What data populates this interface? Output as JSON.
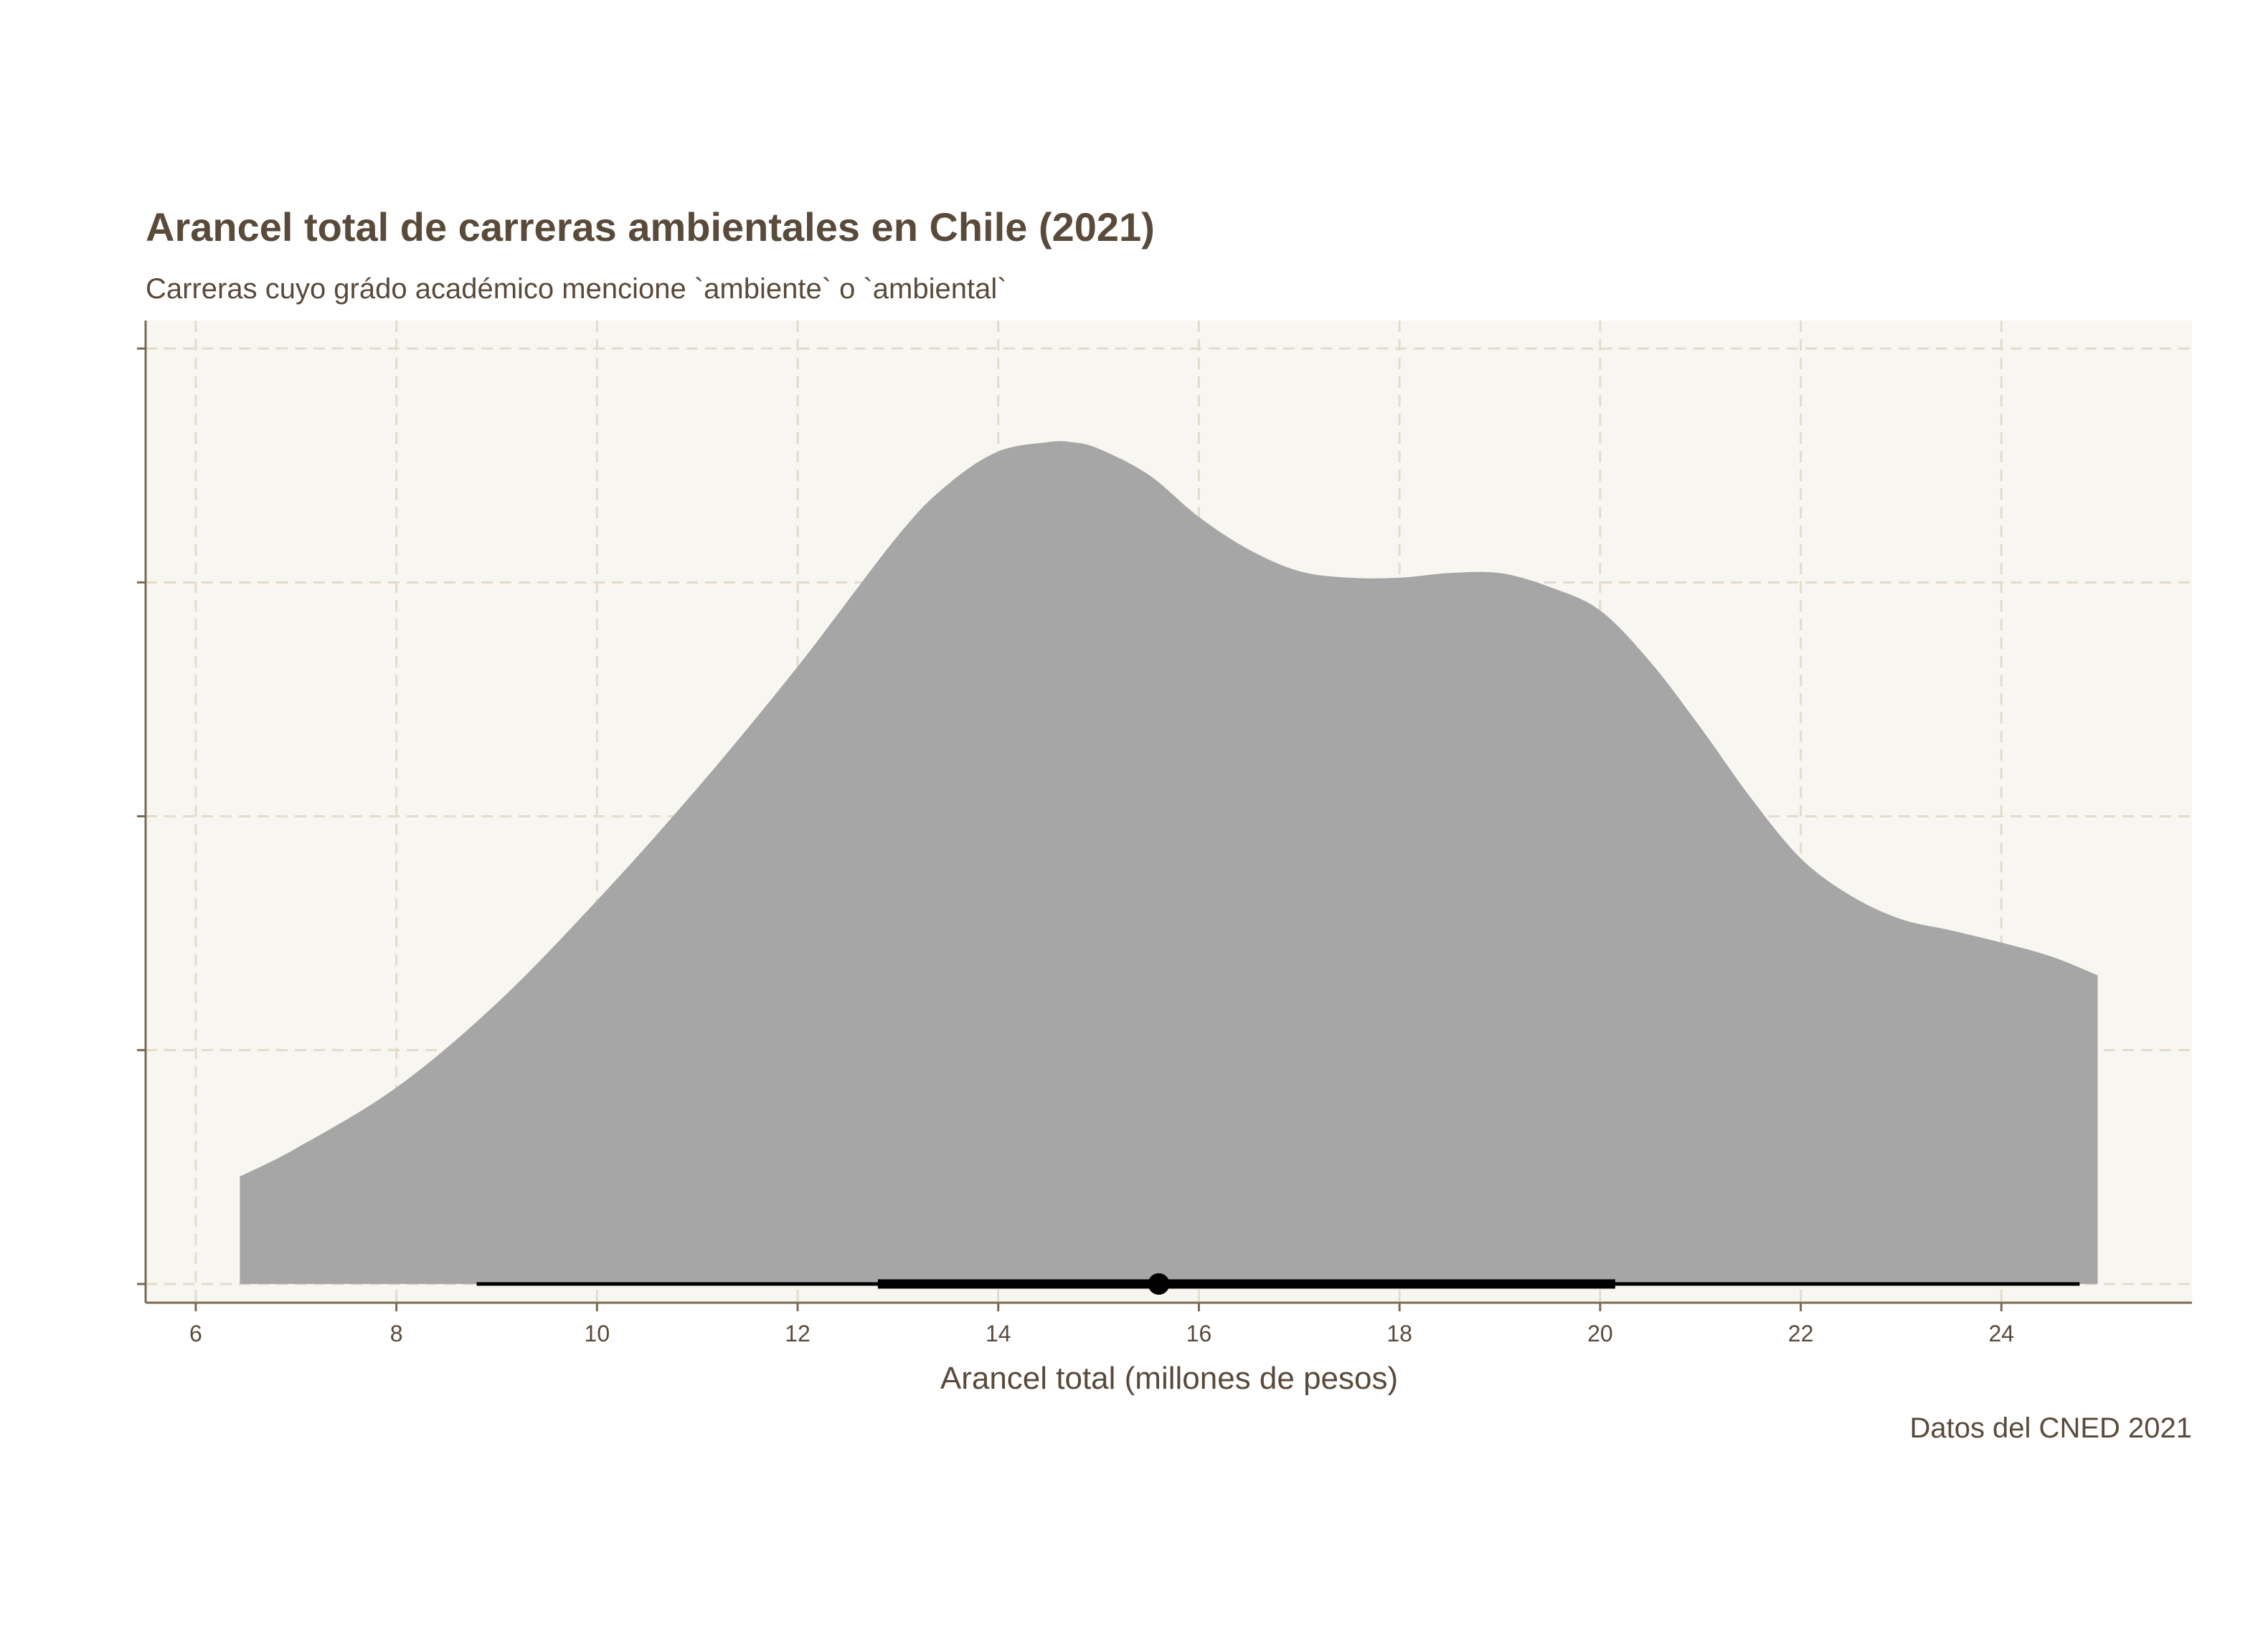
{
  "chart_data": {
    "type": "area",
    "title": "Arancel total de carreras ambientales en Chile (2021)",
    "subtitle": "Carreras cuyo grádo académico mencione `ambiente` o `ambiental`",
    "xlabel": "Arancel total (millones de pesos)",
    "ylabel": "",
    "caption": "Datos del CNED 2021",
    "xlim": [
      5.5,
      25.9
    ],
    "ylim": [
      -0.02,
      1.03
    ],
    "x_ticks": [
      "6",
      "8",
      "10",
      "12",
      "14",
      "16",
      "18",
      "20",
      "22",
      "24"
    ],
    "x_tick_values": [
      6,
      8,
      10,
      12,
      14,
      16,
      18,
      20,
      22,
      24
    ],
    "y_tick_values": [
      0,
      0.25,
      0.5,
      0.75,
      1.0
    ],
    "grid": true,
    "density": {
      "x": [
        6.44,
        7.0,
        8.0,
        9.0,
        10.0,
        11.0,
        12.0,
        13.0,
        13.5,
        14.0,
        14.5,
        14.73,
        15.0,
        15.5,
        16.0,
        16.5,
        17.0,
        17.5,
        18.0,
        18.5,
        19.0,
        19.5,
        20.0,
        20.5,
        21.0,
        21.5,
        22.0,
        22.5,
        23.0,
        23.5,
        24.0,
        24.5,
        24.96
      ],
      "y": [
        0.115,
        0.145,
        0.21,
        0.3,
        0.41,
        0.53,
        0.66,
        0.8,
        0.855,
        0.89,
        0.9,
        0.9,
        0.893,
        0.865,
        0.82,
        0.785,
        0.762,
        0.755,
        0.755,
        0.76,
        0.76,
        0.745,
        0.72,
        0.665,
        0.595,
        0.52,
        0.455,
        0.415,
        0.39,
        0.378,
        0.365,
        0.35,
        0.33
      ]
    },
    "interval": {
      "point": 15.6,
      "inner": [
        12.8,
        20.15
      ],
      "outer": [
        8.8,
        24.78
      ]
    },
    "colors": {
      "fill": "#a6a6a6",
      "panel": "#f8f6f1",
      "grid": "#e3dccb",
      "axis": "#7a6a50",
      "text": "#5a4a3a",
      "interval": "#000000"
    }
  }
}
